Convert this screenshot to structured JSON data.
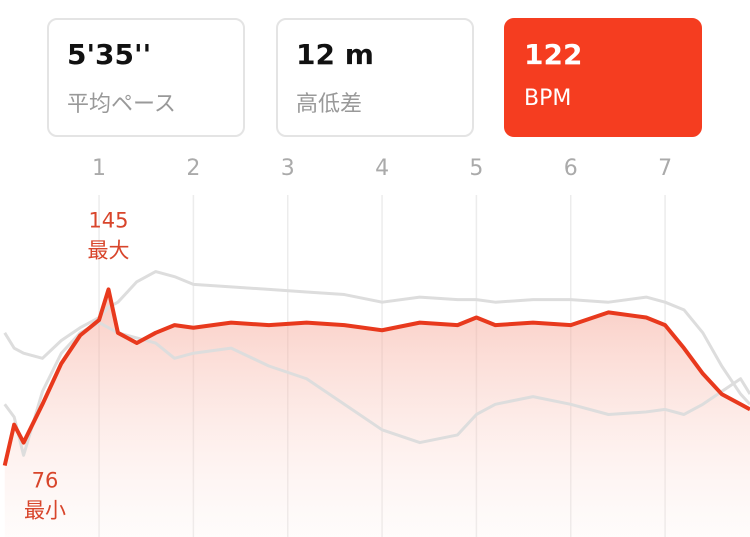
{
  "summary": [
    {
      "value": "5'35''",
      "label": "平均ペース"
    },
    {
      "value": "12 m",
      "label": "高低差"
    },
    {
      "value": "122",
      "label": "BPM"
    }
  ],
  "selected": 2,
  "chart_data": {
    "type": "line",
    "x": [
      0,
      0.1,
      0.2,
      0.4,
      0.6,
      0.8,
      1.0,
      1.1,
      1.2,
      1.4,
      1.6,
      1.8,
      2.0,
      2.4,
      2.8,
      3.2,
      3.6,
      4.0,
      4.4,
      4.8,
      5.0,
      5.2,
      5.6,
      6.0,
      6.4,
      6.8,
      7.0,
      7.2,
      7.4,
      7.6,
      7.8,
      7.9
    ],
    "series": [
      {
        "color": "#dddddd",
        "values": [
          128,
          122,
          120,
          118,
          125,
          130,
          134,
          138,
          140,
          148,
          152,
          150,
          147,
          146,
          145,
          144,
          143,
          140,
          142,
          141,
          141,
          140,
          141,
          141,
          140,
          142,
          140,
          137,
          128,
          115,
          104,
          100
        ]
      },
      {
        "color": "#dddddd",
        "values": [
          100,
          95,
          80,
          105,
          120,
          128,
          132,
          130,
          128,
          126,
          124,
          118,
          120,
          122,
          115,
          110,
          100,
          90,
          85,
          88,
          96,
          100,
          103,
          100,
          96,
          97,
          98,
          96,
          100,
          105,
          110,
          104
        ]
      },
      {
        "color": "#e8391d",
        "values": [
          76,
          92,
          85,
          100,
          116,
          127,
          133,
          145,
          128,
          124,
          128,
          131,
          130,
          132,
          131,
          132,
          131,
          129,
          132,
          131,
          134,
          131,
          132,
          131,
          136,
          134,
          131,
          122,
          112,
          104,
          100,
          98
        ]
      }
    ],
    "annotations": [
      {
        "value": 145,
        "label": "最大"
      },
      {
        "value": 76,
        "label": "最小"
      }
    ],
    "xlim": [
      -0.05,
      7.9
    ],
    "xticks": [
      1,
      2,
      3,
      4,
      5,
      6,
      7
    ],
    "ylim": [
      48,
      182
    ],
    "grid": true
  }
}
